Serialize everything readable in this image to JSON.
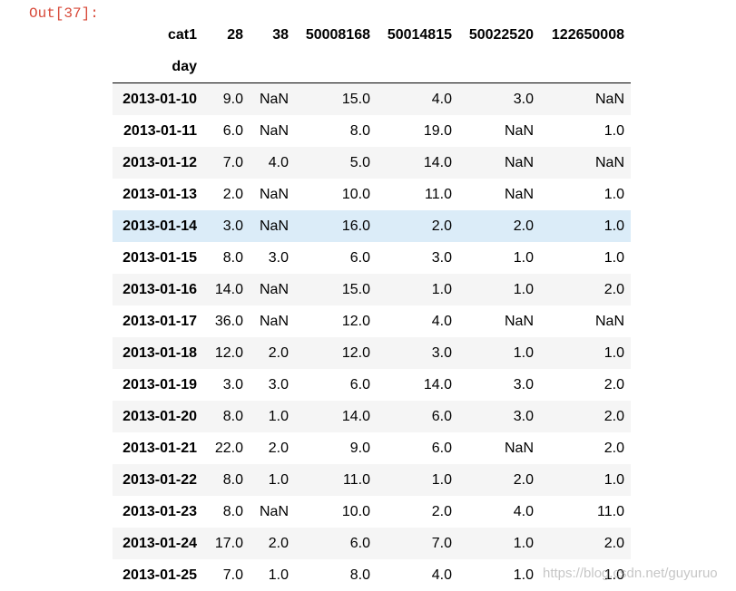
{
  "header": {
    "prompt": "Out[37]:"
  },
  "table": {
    "columns_name": "cat1",
    "columns": [
      "28",
      "38",
      "50008168",
      "50014815",
      "50022520",
      "122650008"
    ],
    "index_name": "day",
    "rows": [
      [
        "2013-01-10",
        "9.0",
        "NaN",
        "15.0",
        "4.0",
        "3.0",
        "NaN"
      ],
      [
        "2013-01-11",
        "6.0",
        "NaN",
        "8.0",
        "19.0",
        "NaN",
        "1.0"
      ],
      [
        "2013-01-12",
        "7.0",
        "4.0",
        "5.0",
        "14.0",
        "NaN",
        "NaN"
      ],
      [
        "2013-01-13",
        "2.0",
        "NaN",
        "10.0",
        "11.0",
        "NaN",
        "1.0"
      ],
      [
        "2013-01-14",
        "3.0",
        "NaN",
        "16.0",
        "2.0",
        "2.0",
        "1.0"
      ],
      [
        "2013-01-15",
        "8.0",
        "3.0",
        "6.0",
        "3.0",
        "1.0",
        "1.0"
      ],
      [
        "2013-01-16",
        "14.0",
        "NaN",
        "15.0",
        "1.0",
        "1.0",
        "2.0"
      ],
      [
        "2013-01-17",
        "36.0",
        "NaN",
        "12.0",
        "4.0",
        "NaN",
        "NaN"
      ],
      [
        "2013-01-18",
        "12.0",
        "2.0",
        "12.0",
        "3.0",
        "1.0",
        "1.0"
      ],
      [
        "2013-01-19",
        "3.0",
        "3.0",
        "6.0",
        "14.0",
        "3.0",
        "2.0"
      ],
      [
        "2013-01-20",
        "8.0",
        "1.0",
        "14.0",
        "6.0",
        "3.0",
        "2.0"
      ],
      [
        "2013-01-21",
        "22.0",
        "2.0",
        "9.0",
        "6.0",
        "NaN",
        "2.0"
      ],
      [
        "2013-01-22",
        "8.0",
        "1.0",
        "11.0",
        "1.0",
        "2.0",
        "1.0"
      ],
      [
        "2013-01-23",
        "8.0",
        "NaN",
        "10.0",
        "2.0",
        "4.0",
        "11.0"
      ],
      [
        "2013-01-24",
        "17.0",
        "2.0",
        "6.0",
        "7.0",
        "1.0",
        "2.0"
      ],
      [
        "2013-01-25",
        "7.0",
        "1.0",
        "8.0",
        "4.0",
        "1.0",
        "1.0"
      ]
    ]
  },
  "watermark": "https://blog.csdn.net/guyuruo"
}
